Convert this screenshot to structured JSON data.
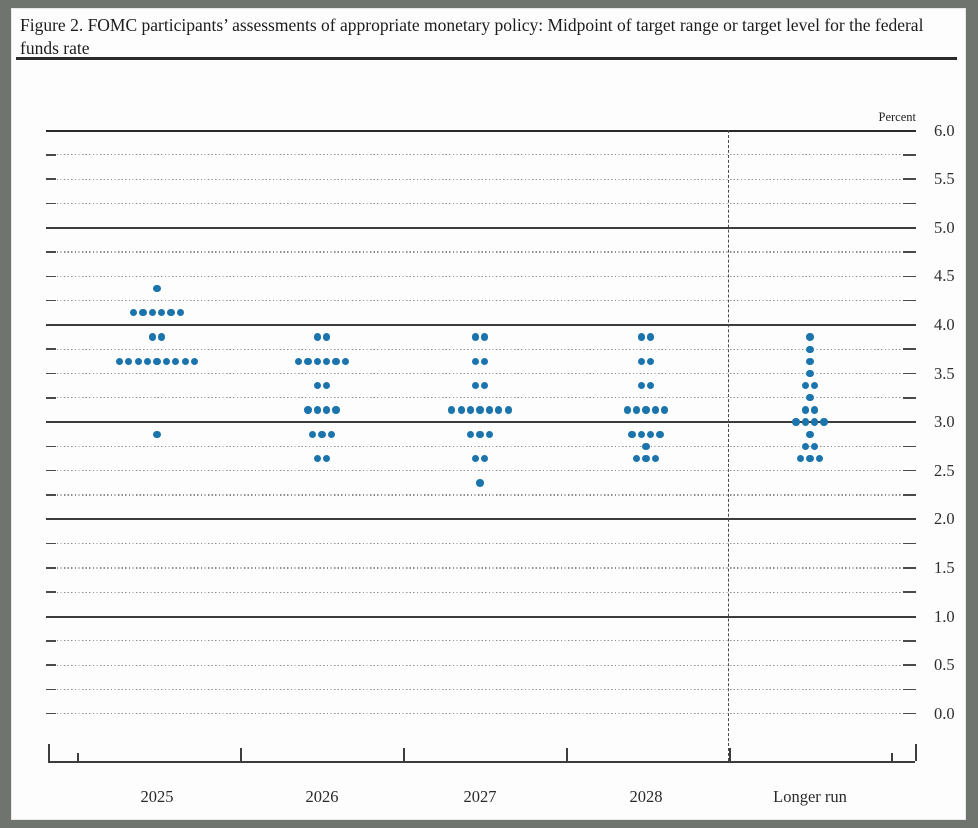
{
  "page": {
    "title_line1": "Figure 2. FOMC participants’ assessments of appropriate monetary policy: Midpoint of target range",
    "title_line2": "or target level for the federal funds rate"
  },
  "chart_data": {
    "type": "scatter",
    "title": "FOMC participants’ assessments of appropriate monetary policy: Midpoint of target range or target level for the federal funds rate",
    "ylabel": "Percent",
    "ylim": [
      0.0,
      6.0
    ],
    "y_grid_step": 0.25,
    "y_label_step": 0.5,
    "y_tick_labels": [
      "6.0",
      "5.5",
      "5.0",
      "4.5",
      "4.0",
      "3.5",
      "3.0",
      "2.5",
      "2.0",
      "1.5",
      "1.0",
      "0.5",
      "0.0"
    ],
    "grid": "dotted quarters, solid integers",
    "legend_position": "none",
    "categories": [
      "2025",
      "2026",
      "2027",
      "2028",
      "Longer run"
    ],
    "separator_before_category": "Longer run",
    "dot_color": "#1b74ac",
    "series": [
      {
        "category": "2025",
        "dots": [
          {
            "rate": 4.375,
            "count": 1
          },
          {
            "rate": 4.125,
            "count": 6
          },
          {
            "rate": 3.875,
            "count": 2
          },
          {
            "rate": 3.625,
            "count": 9
          },
          {
            "rate": 2.875,
            "count": 1
          }
        ]
      },
      {
        "category": "2026",
        "dots": [
          {
            "rate": 3.875,
            "count": 2
          },
          {
            "rate": 3.625,
            "count": 6
          },
          {
            "rate": 3.375,
            "count": 2
          },
          {
            "rate": 3.125,
            "count": 4
          },
          {
            "rate": 2.875,
            "count": 3
          },
          {
            "rate": 2.625,
            "count": 2
          }
        ]
      },
      {
        "category": "2027",
        "dots": [
          {
            "rate": 3.875,
            "count": 2
          },
          {
            "rate": 3.625,
            "count": 2
          },
          {
            "rate": 3.375,
            "count": 2
          },
          {
            "rate": 3.125,
            "count": 7
          },
          {
            "rate": 2.875,
            "count": 3
          },
          {
            "rate": 2.625,
            "count": 2
          },
          {
            "rate": 2.375,
            "count": 1
          }
        ]
      },
      {
        "category": "2028",
        "dots": [
          {
            "rate": 3.875,
            "count": 2
          },
          {
            "rate": 3.625,
            "count": 2
          },
          {
            "rate": 3.375,
            "count": 2
          },
          {
            "rate": 3.125,
            "count": 5
          },
          {
            "rate": 2.875,
            "count": 4
          },
          {
            "rate": 2.75,
            "count": 1
          },
          {
            "rate": 2.625,
            "count": 3
          }
        ]
      },
      {
        "category": "Longer run",
        "dots": [
          {
            "rate": 3.875,
            "count": 1
          },
          {
            "rate": 3.75,
            "count": 1
          },
          {
            "rate": 3.625,
            "count": 1
          },
          {
            "rate": 3.5,
            "count": 1
          },
          {
            "rate": 3.375,
            "count": 2
          },
          {
            "rate": 3.25,
            "count": 1
          },
          {
            "rate": 3.125,
            "count": 2
          },
          {
            "rate": 3.0,
            "count": 4
          },
          {
            "rate": 2.875,
            "count": 1
          },
          {
            "rate": 2.75,
            "count": 2
          },
          {
            "rate": 2.625,
            "count": 3
          }
        ]
      }
    ]
  }
}
